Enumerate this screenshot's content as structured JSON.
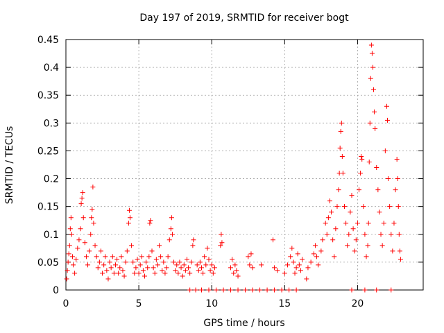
{
  "chart_data": {
    "type": "scatter",
    "title": "Day 197 of 2019, SRMTID for receiver bogt",
    "xlabel": "GPS time / hours",
    "ylabel": "SRMTID / TECUs",
    "xlim": [
      0,
      24.5
    ],
    "ylim": [
      0,
      0.45
    ],
    "xticks": [
      0,
      5,
      10,
      15,
      20
    ],
    "xtick_labels": [
      "0",
      "5",
      "10",
      "15",
      "20"
    ],
    "yticks": [
      0,
      0.05,
      0.1,
      0.15,
      0.2,
      0.25,
      0.3,
      0.35,
      0.4,
      0.45
    ],
    "ytick_labels": [
      "0",
      "0.05",
      "0.1",
      "0.15",
      "0.2",
      "0.25",
      "0.3",
      "0.35",
      "0.4",
      "0.45"
    ],
    "grid": true,
    "marker": "+",
    "color": "#ff0000",
    "series": [
      {
        "name": "SRMTID",
        "points": [
          [
            0.05,
            0.02
          ],
          [
            0.1,
            0.035
          ],
          [
            0.15,
            0.05
          ],
          [
            0.2,
            0.065
          ],
          [
            0.25,
            0.08
          ],
          [
            0.3,
            0.11
          ],
          [
            0.35,
            0.13
          ],
          [
            0.4,
            0.1
          ],
          [
            0.45,
            0.06
          ],
          [
            0.5,
            0.045
          ],
          [
            0.6,
            0.03
          ],
          [
            0.7,
            0.055
          ],
          [
            0.8,
            0.075
          ],
          [
            0.9,
            0.09
          ],
          [
            1.0,
            0.11
          ],
          [
            1.05,
            0.155
          ],
          [
            1.1,
            0.165
          ],
          [
            1.15,
            0.175
          ],
          [
            1.2,
            0.13
          ],
          [
            1.3,
            0.085
          ],
          [
            1.4,
            0.06
          ],
          [
            1.5,
            0.045
          ],
          [
            1.6,
            0.07
          ],
          [
            1.7,
            0.1
          ],
          [
            1.75,
            0.13
          ],
          [
            1.8,
            0.145
          ],
          [
            1.85,
            0.185
          ],
          [
            1.9,
            0.12
          ],
          [
            2.0,
            0.08
          ],
          [
            2.1,
            0.06
          ],
          [
            2.2,
            0.04
          ],
          [
            2.3,
            0.05
          ],
          [
            2.4,
            0.07
          ],
          [
            2.5,
            0.03
          ],
          [
            2.6,
            0.045
          ],
          [
            2.7,
            0.06
          ],
          [
            2.8,
            0.035
          ],
          [
            2.9,
            0.02
          ],
          [
            3.0,
            0.05
          ],
          [
            3.1,
            0.04
          ],
          [
            3.2,
            0.06
          ],
          [
            3.3,
            0.03
          ],
          [
            3.4,
            0.045
          ],
          [
            3.5,
            0.055
          ],
          [
            3.6,
            0.03
          ],
          [
            3.7,
            0.04
          ],
          [
            3.8,
            0.06
          ],
          [
            3.9,
            0.035
          ],
          [
            4.0,
            0.025
          ],
          [
            4.1,
            0.05
          ],
          [
            4.2,
            0.07
          ],
          [
            4.3,
            0.12
          ],
          [
            4.35,
            0.143
          ],
          [
            4.4,
            0.13
          ],
          [
            4.5,
            0.08
          ],
          [
            4.6,
            0.05
          ],
          [
            4.7,
            0.03
          ],
          [
            4.8,
            0.04
          ],
          [
            4.9,
            0.055
          ],
          [
            5.0,
            0.03
          ],
          [
            5.1,
            0.045
          ],
          [
            5.2,
            0.06
          ],
          [
            5.3,
            0.035
          ],
          [
            5.4,
            0.025
          ],
          [
            5.5,
            0.05
          ],
          [
            5.6,
            0.04
          ],
          [
            5.7,
            0.06
          ],
          [
            5.75,
            0.12
          ],
          [
            5.8,
            0.125
          ],
          [
            5.9,
            0.07
          ],
          [
            6.0,
            0.04
          ],
          [
            6.1,
            0.03
          ],
          [
            6.2,
            0.055
          ],
          [
            6.3,
            0.045
          ],
          [
            6.4,
            0.08
          ],
          [
            6.5,
            0.06
          ],
          [
            6.6,
            0.035
          ],
          [
            6.7,
            0.05
          ],
          [
            6.8,
            0.03
          ],
          [
            6.9,
            0.04
          ],
          [
            7.0,
            0.06
          ],
          [
            7.1,
            0.09
          ],
          [
            7.2,
            0.11
          ],
          [
            7.25,
            0.13
          ],
          [
            7.3,
            0.1
          ],
          [
            7.4,
            0.05
          ],
          [
            7.5,
            0.035
          ],
          [
            7.6,
            0.045
          ],
          [
            7.7,
            0.03
          ],
          [
            7.8,
            0.05
          ],
          [
            7.9,
            0.04
          ],
          [
            8.0,
            0.025
          ],
          [
            8.1,
            0.045
          ],
          [
            8.2,
            0.035
          ],
          [
            8.3,
            0.055
          ],
          [
            8.4,
            0.04
          ],
          [
            8.5,
            0.03
          ],
          [
            8.6,
            0.05
          ],
          [
            8.7,
            0.08
          ],
          [
            8.75,
            0.09
          ],
          [
            9.0,
            0.045
          ],
          [
            9.1,
            0.035
          ],
          [
            9.2,
            0.05
          ],
          [
            9.3,
            0.04
          ],
          [
            9.4,
            0.03
          ],
          [
            9.5,
            0.06
          ],
          [
            9.6,
            0.045
          ],
          [
            9.7,
            0.075
          ],
          [
            9.8,
            0.055
          ],
          [
            9.9,
            0.035
          ],
          [
            10.0,
            0.045
          ],
          [
            10.1,
            0.03
          ],
          [
            10.2,
            0.04
          ],
          [
            10.6,
            0.08
          ],
          [
            10.65,
            0.1
          ],
          [
            10.7,
            0.085
          ],
          [
            11.3,
            0.04
          ],
          [
            11.4,
            0.055
          ],
          [
            11.5,
            0.03
          ],
          [
            11.6,
            0.045
          ],
          [
            11.7,
            0.035
          ],
          [
            11.8,
            0.025
          ],
          [
            12.5,
            0.06
          ],
          [
            12.6,
            0.045
          ],
          [
            12.7,
            0.065
          ],
          [
            12.8,
            0.04
          ],
          [
            13.4,
            0.045
          ],
          [
            14.2,
            0.09
          ],
          [
            14.3,
            0.04
          ],
          [
            14.5,
            0.035
          ],
          [
            15.0,
            0.03
          ],
          [
            15.2,
            0.045
          ],
          [
            15.4,
            0.06
          ],
          [
            15.5,
            0.075
          ],
          [
            15.6,
            0.05
          ],
          [
            15.7,
            0.03
          ],
          [
            15.8,
            0.04
          ],
          [
            15.9,
            0.065
          ],
          [
            16.0,
            0.045
          ],
          [
            16.1,
            0.035
          ],
          [
            16.2,
            0.055
          ],
          [
            16.5,
            0.02
          ],
          [
            16.6,
            0.04
          ],
          [
            16.8,
            0.05
          ],
          [
            17.0,
            0.065
          ],
          [
            17.1,
            0.08
          ],
          [
            17.2,
            0.06
          ],
          [
            17.3,
            0.045
          ],
          [
            17.5,
            0.07
          ],
          [
            17.6,
            0.09
          ],
          [
            17.8,
            0.12
          ],
          [
            17.9,
            0.1
          ],
          [
            18.0,
            0.13
          ],
          [
            18.1,
            0.16
          ],
          [
            18.2,
            0.14
          ],
          [
            18.3,
            0.09
          ],
          [
            18.4,
            0.06
          ],
          [
            18.5,
            0.11
          ],
          [
            18.6,
            0.15
          ],
          [
            18.7,
            0.18
          ],
          [
            18.75,
            0.21
          ],
          [
            18.8,
            0.255
          ],
          [
            18.85,
            0.285
          ],
          [
            18.9,
            0.3
          ],
          [
            18.95,
            0.24
          ],
          [
            19.0,
            0.21
          ],
          [
            19.1,
            0.15
          ],
          [
            19.2,
            0.12
          ],
          [
            19.3,
            0.08
          ],
          [
            19.4,
            0.1
          ],
          [
            19.5,
            0.14
          ],
          [
            19.6,
            0.17
          ],
          [
            19.7,
            0.11
          ],
          [
            19.8,
            0.07
          ],
          [
            19.9,
            0.09
          ],
          [
            20.0,
            0.12
          ],
          [
            20.1,
            0.18
          ],
          [
            20.2,
            0.21
          ],
          [
            20.25,
            0.24
          ],
          [
            20.3,
            0.235
          ],
          [
            20.4,
            0.15
          ],
          [
            20.5,
            0.1
          ],
          [
            20.6,
            0.06
          ],
          [
            20.7,
            0.08
          ],
          [
            20.75,
            0.12
          ],
          [
            20.8,
            0.23
          ],
          [
            20.85,
            0.3
          ],
          [
            20.9,
            0.38
          ],
          [
            20.95,
            0.44
          ],
          [
            21.0,
            0.425
          ],
          [
            21.05,
            0.4
          ],
          [
            21.1,
            0.36
          ],
          [
            21.15,
            0.32
          ],
          [
            21.2,
            0.29
          ],
          [
            21.3,
            0.22
          ],
          [
            21.4,
            0.18
          ],
          [
            21.5,
            0.14
          ],
          [
            21.6,
            0.1
          ],
          [
            21.7,
            0.08
          ],
          [
            21.8,
            0.12
          ],
          [
            21.9,
            0.25
          ],
          [
            22.0,
            0.33
          ],
          [
            22.05,
            0.305
          ],
          [
            22.1,
            0.2
          ],
          [
            22.2,
            0.15
          ],
          [
            22.3,
            0.1
          ],
          [
            22.4,
            0.07
          ],
          [
            22.5,
            0.12
          ],
          [
            22.6,
            0.18
          ],
          [
            22.7,
            0.235
          ],
          [
            22.75,
            0.2
          ],
          [
            22.8,
            0.15
          ],
          [
            22.85,
            0.1
          ],
          [
            22.9,
            0.07
          ],
          [
            22.95,
            0.055
          ],
          [
            8.5,
            0
          ],
          [
            8.9,
            0
          ],
          [
            9.3,
            0
          ],
          [
            9.8,
            0
          ],
          [
            10.3,
            0
          ],
          [
            10.8,
            0
          ],
          [
            11.3,
            0
          ],
          [
            11.8,
            0
          ],
          [
            12.3,
            0
          ],
          [
            12.8,
            0
          ],
          [
            13.3,
            0
          ],
          [
            13.8,
            0
          ],
          [
            14.3,
            0
          ],
          [
            14.8,
            0
          ],
          [
            15.3,
            0
          ],
          [
            15.8,
            0
          ],
          [
            19.6,
            0
          ],
          [
            20.5,
            0
          ],
          [
            21.3,
            0
          ],
          [
            22.3,
            0
          ]
        ]
      }
    ]
  }
}
